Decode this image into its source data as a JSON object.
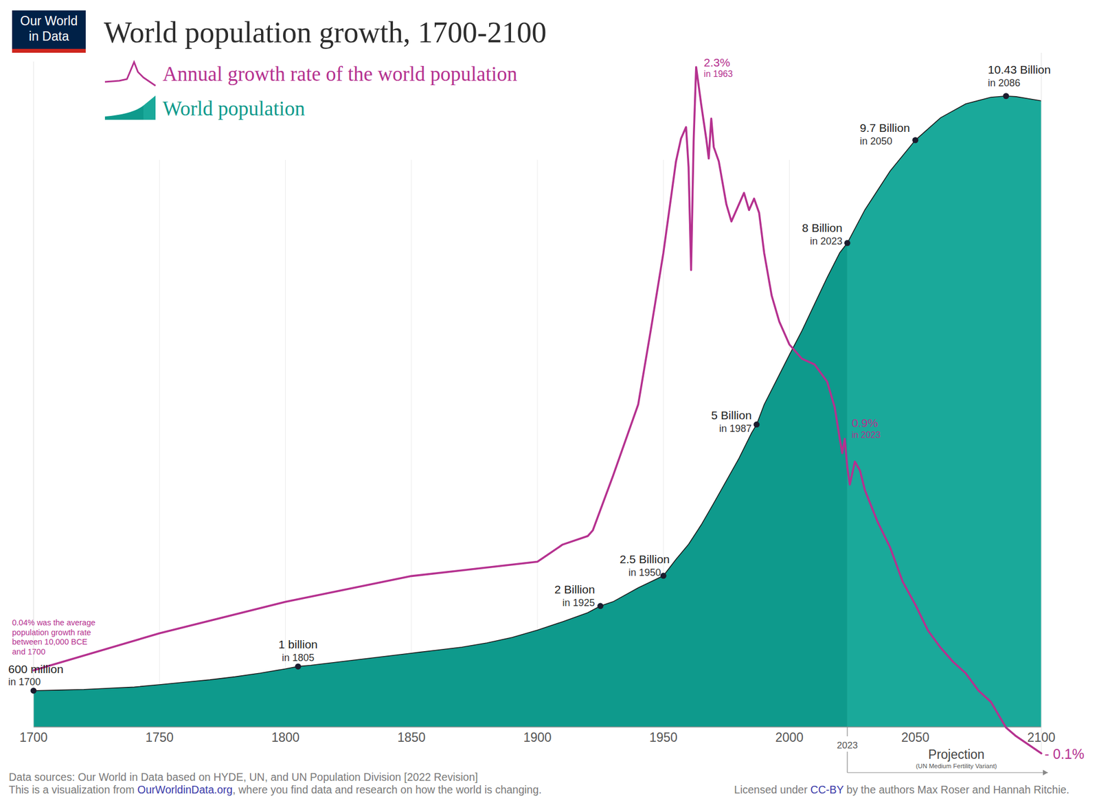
{
  "chart_data": {
    "type": "area",
    "title": "World population growth, 1700-2100",
    "logo": [
      "Our World",
      "in Data"
    ],
    "legend": "top-left",
    "grid": true,
    "tick_labels": "x",
    "xlim": [
      1700,
      2100
    ],
    "xticks": [
      1700,
      1750,
      1800,
      1850,
      1900,
      1950,
      2000,
      2050,
      2100
    ],
    "ylim": [
      0,
      11
    ],
    "y2lim": [
      -0.1,
      2.35
    ],
    "series": [
      {
        "name": "Annual growth rate of the world population",
        "type": "line",
        "axis": "y2",
        "color": "#b5318f",
        "x": [
          1700,
          1750,
          1800,
          1850,
          1870,
          1890,
          1900,
          1910,
          1920,
          1922,
          1930,
          1940,
          1945,
          1950,
          1955,
          1957,
          1959,
          1960,
          1961,
          1962,
          1963,
          1965,
          1967,
          1968,
          1969,
          1970,
          1972,
          1975,
          1977,
          1980,
          1982,
          1984,
          1986,
          1988,
          1990,
          1993,
          1996,
          2000,
          2005,
          2010,
          2015,
          2018,
          2020,
          2021,
          2022,
          2023,
          2024,
          2026,
          2028,
          2030,
          2035,
          2040,
          2045,
          2050,
          2055,
          2060,
          2065,
          2070,
          2075,
          2080,
          2086,
          2090,
          2100
        ],
        "values": [
          0.19,
          0.32,
          0.43,
          0.52,
          0.54,
          0.56,
          0.57,
          0.63,
          0.66,
          0.68,
          0.87,
          1.12,
          1.38,
          1.65,
          1.97,
          2.05,
          2.09,
          1.95,
          1.59,
          2.04,
          2.3,
          2.17,
          2.05,
          1.98,
          2.12,
          2.02,
          1.97,
          1.82,
          1.76,
          1.82,
          1.86,
          1.8,
          1.84,
          1.79,
          1.65,
          1.5,
          1.41,
          1.33,
          1.28,
          1.26,
          1.2,
          1.11,
          1.0,
          0.95,
          1.0,
          0.9,
          0.84,
          0.92,
          0.89,
          0.82,
          0.71,
          0.62,
          0.5,
          0.42,
          0.33,
          0.27,
          0.22,
          0.18,
          0.12,
          0.08,
          -0.01,
          -0.04,
          -0.1
        ]
      },
      {
        "name": "World population",
        "type": "area",
        "color": "#0e9a8c",
        "x": [
          1700,
          1710,
          1720,
          1730,
          1740,
          1750,
          1760,
          1770,
          1780,
          1790,
          1800,
          1805,
          1810,
          1820,
          1830,
          1840,
          1850,
          1860,
          1870,
          1880,
          1890,
          1900,
          1910,
          1920,
          1925,
          1930,
          1940,
          1950,
          1955,
          1960,
          1965,
          1970,
          1975,
          1980,
          1985,
          1987,
          1990,
          1995,
          2000,
          2005,
          2010,
          2015,
          2020,
          2023,
          2030,
          2040,
          2050,
          2060,
          2070,
          2080,
          2086,
          2090,
          2100
        ],
        "values": [
          0.6,
          0.61,
          0.62,
          0.64,
          0.66,
          0.7,
          0.74,
          0.78,
          0.83,
          0.89,
          0.96,
          1.0,
          1.02,
          1.07,
          1.12,
          1.17,
          1.22,
          1.27,
          1.32,
          1.39,
          1.48,
          1.6,
          1.74,
          1.89,
          2.0,
          2.07,
          2.3,
          2.5,
          2.77,
          3.02,
          3.34,
          3.7,
          4.07,
          4.44,
          4.86,
          5.0,
          5.33,
          5.74,
          6.15,
          6.55,
          6.99,
          7.43,
          7.84,
          8.0,
          8.55,
          9.19,
          9.7,
          10.07,
          10.3,
          10.41,
          10.43,
          10.42,
          10.35
        ]
      }
    ],
    "annotations": [
      {
        "x": 1700,
        "value": 0.6,
        "axis": "y",
        "label": "600 million",
        "sublabel": "in 1700"
      },
      {
        "x": 1805,
        "value": 1.0,
        "axis": "y",
        "label": "1 billion",
        "sublabel": "in 1805"
      },
      {
        "x": 1925,
        "value": 2.0,
        "axis": "y",
        "label": "2 Billion",
        "sublabel": "in 1925"
      },
      {
        "x": 1950,
        "value": 2.5,
        "axis": "y",
        "label": "2.5 Billion",
        "sublabel": "in 1950"
      },
      {
        "x": 1987,
        "value": 5.0,
        "axis": "y",
        "label": "5 Billion",
        "sublabel": "in 1987"
      },
      {
        "x": 2023,
        "value": 8.0,
        "axis": "y",
        "label": "8 Billion",
        "sublabel": "in 2023"
      },
      {
        "x": 2050,
        "value": 9.7,
        "axis": "y",
        "label": "9.7 Billion",
        "sublabel": "in 2050"
      },
      {
        "x": 2086,
        "value": 10.43,
        "axis": "y",
        "label": "10.43 Billion",
        "sublabel": "in 2086"
      },
      {
        "x": 1963,
        "value": 2.3,
        "axis": "y2",
        "label": "2.3%",
        "sublabel": "in 1963"
      },
      {
        "x": 2023,
        "value": 0.9,
        "axis": "y2",
        "label": "0.9%",
        "sublabel": "in 2023"
      },
      {
        "x": 2100,
        "value": -0.1,
        "axis": "y2",
        "label": "- 0.1%"
      }
    ],
    "note": [
      "0.04% was the average",
      "population growth rate",
      "between 10,000 BCE",
      "and 1700"
    ],
    "projection": {
      "x": 2023,
      "label": "Projection",
      "sublabel": "(UN Medium Fertility Variant)"
    },
    "footer": {
      "sources": "Data sources: Our World in Data based on HYDE, UN, and UN Population Division [2022 Revision]",
      "visualization": [
        "This is a visualization from ",
        "OurWorldinData.org",
        ", where you find data and research on how the world is changing."
      ],
      "license": [
        "Licensed under ",
        "CC-BY",
        " by the authors Max Roser and Hannah Ritchie."
      ]
    }
  }
}
